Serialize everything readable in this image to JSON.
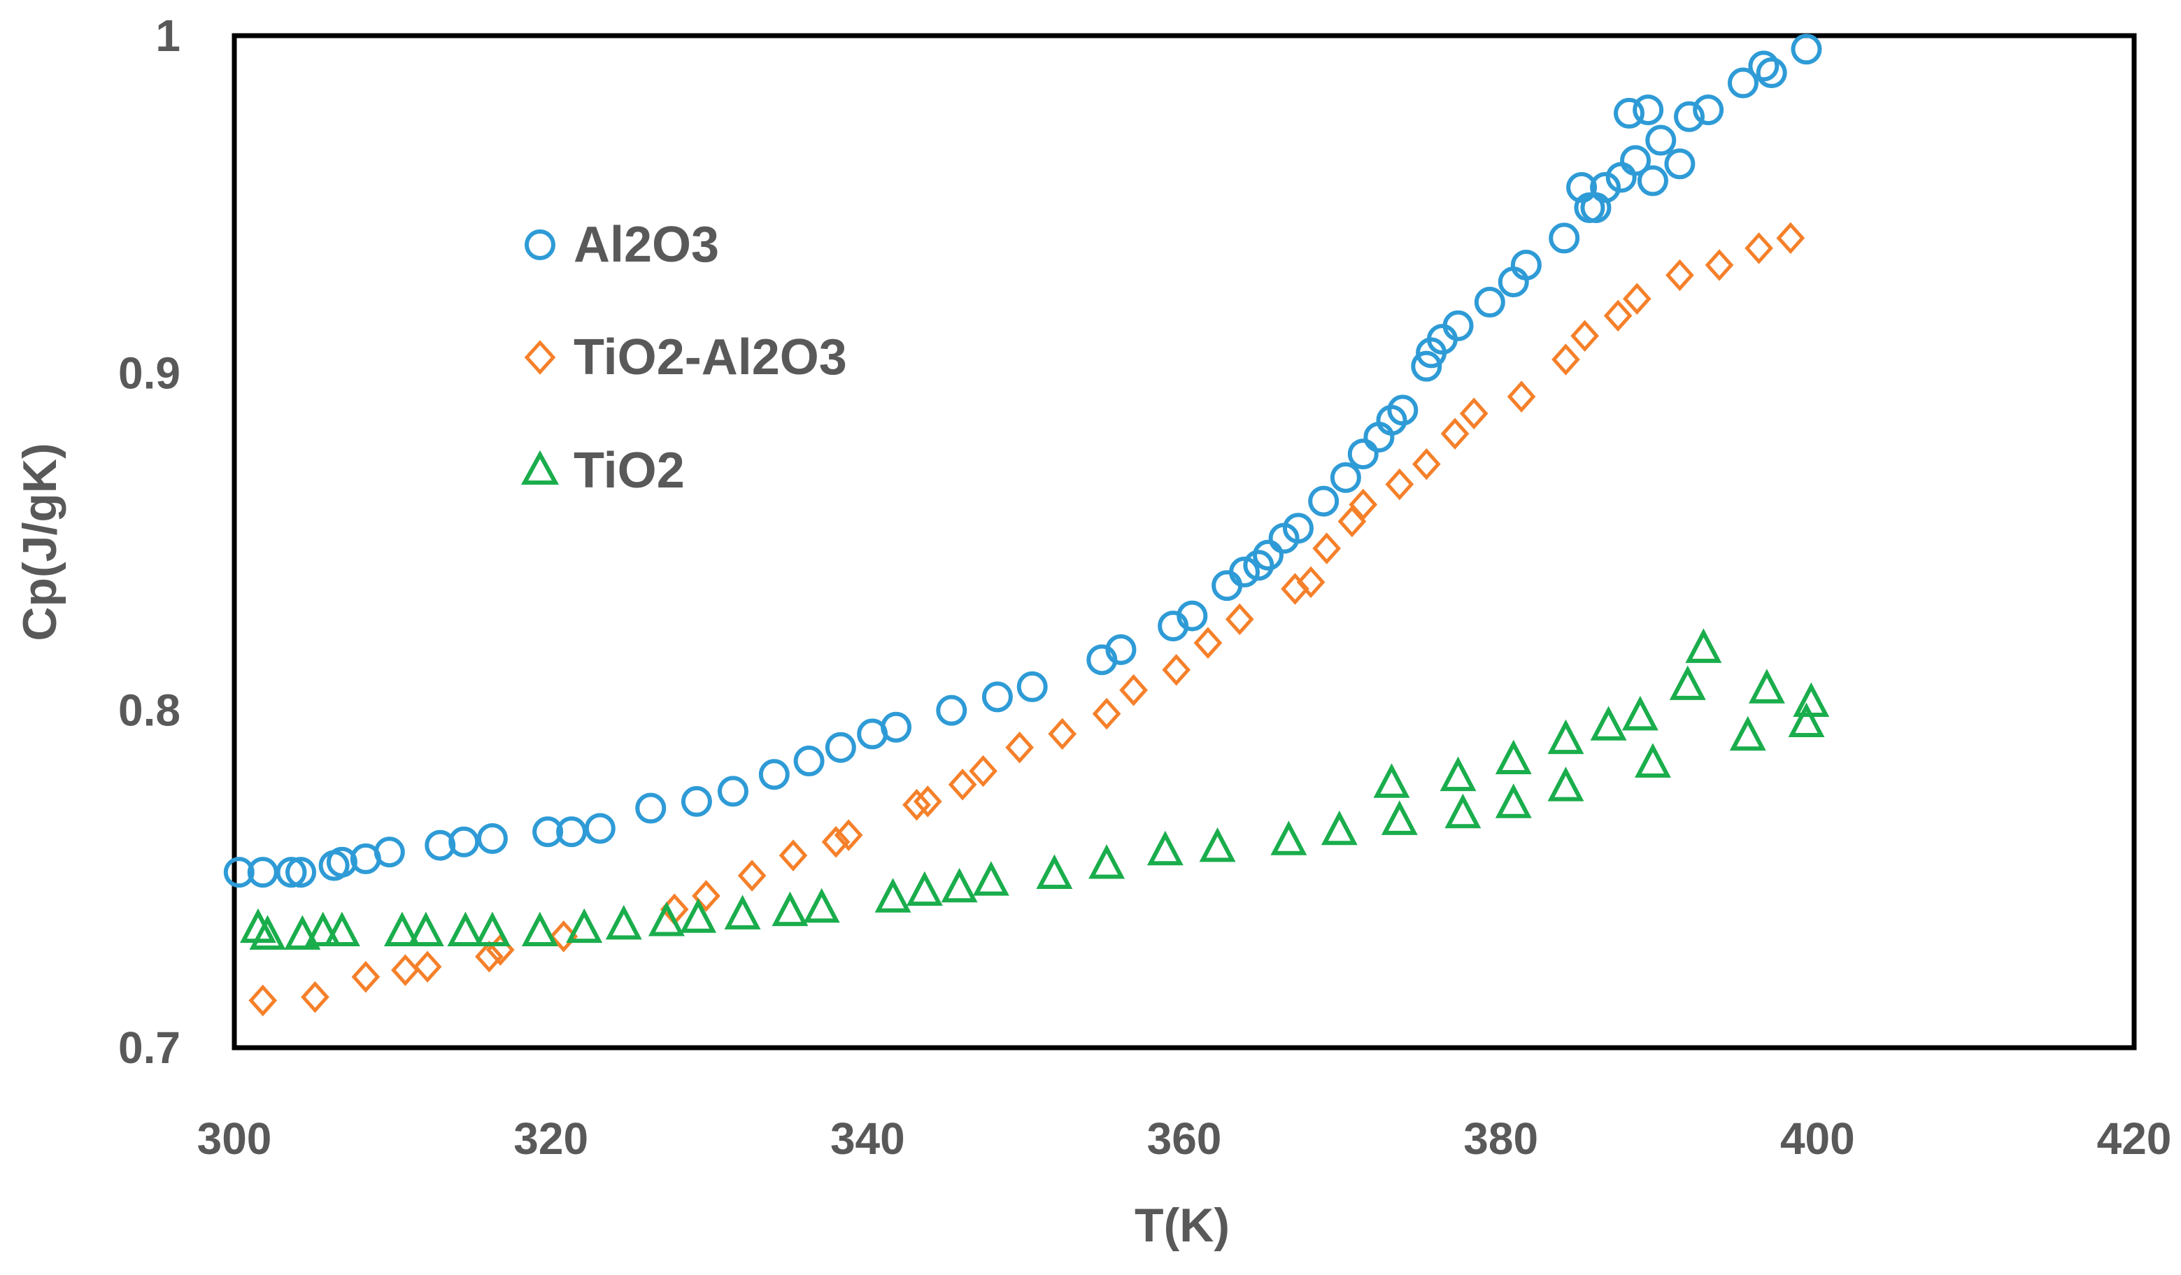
{
  "chart_data": {
    "type": "scatter",
    "title": "",
    "xlabel": "T(K)",
    "ylabel": "Cp(J/gK)",
    "xlim": [
      300,
      420
    ],
    "ylim": [
      0.7,
      1.0
    ],
    "x_ticks": [
      "300",
      "320",
      "340",
      "360",
      "380",
      "400",
      "420"
    ],
    "y_ticks": [
      "0.7",
      "0.8",
      "0.9",
      "1"
    ],
    "grid": false,
    "legend_position": "top-left",
    "series": [
      {
        "name": "Al2O3",
        "marker": "circle",
        "color": "#2e9bd6",
        "points": [
          [
            300.3,
            0.752
          ],
          [
            301.8,
            0.752
          ],
          [
            303.6,
            0.752
          ],
          [
            304.2,
            0.752
          ],
          [
            306.3,
            0.754
          ],
          [
            306.8,
            0.755
          ],
          [
            308.3,
            0.756
          ],
          [
            309.8,
            0.758
          ],
          [
            313.0,
            0.76
          ],
          [
            314.5,
            0.761
          ],
          [
            316.3,
            0.762
          ],
          [
            319.8,
            0.764
          ],
          [
            321.3,
            0.764
          ],
          [
            323.1,
            0.765
          ],
          [
            326.3,
            0.771
          ],
          [
            329.2,
            0.773
          ],
          [
            331.5,
            0.776
          ],
          [
            334.1,
            0.781
          ],
          [
            336.3,
            0.785
          ],
          [
            338.3,
            0.789
          ],
          [
            340.3,
            0.793
          ],
          [
            341.8,
            0.795
          ],
          [
            345.3,
            0.8
          ],
          [
            348.2,
            0.804
          ],
          [
            350.4,
            0.807
          ],
          [
            354.8,
            0.815
          ],
          [
            356.0,
            0.818
          ],
          [
            359.3,
            0.825
          ],
          [
            360.5,
            0.828
          ],
          [
            362.7,
            0.837
          ],
          [
            363.8,
            0.841
          ],
          [
            364.7,
            0.843
          ],
          [
            365.3,
            0.846
          ],
          [
            366.3,
            0.851
          ],
          [
            367.2,
            0.854
          ],
          [
            368.8,
            0.862
          ],
          [
            370.2,
            0.869
          ],
          [
            371.3,
            0.876
          ],
          [
            372.3,
            0.881
          ],
          [
            373.1,
            0.886
          ],
          [
            373.8,
            0.889
          ],
          [
            375.3,
            0.902
          ],
          [
            375.6,
            0.906
          ],
          [
            376.3,
            0.91
          ],
          [
            377.3,
            0.914
          ],
          [
            379.3,
            0.921
          ],
          [
            380.8,
            0.927
          ],
          [
            381.6,
            0.932
          ],
          [
            384.0,
            0.94
          ],
          [
            385.1,
            0.955
          ],
          [
            385.6,
            0.949
          ],
          [
            386.0,
            0.949
          ],
          [
            386.6,
            0.955
          ],
          [
            387.6,
            0.958
          ],
          [
            388.1,
            0.977
          ],
          [
            388.5,
            0.963
          ],
          [
            389.3,
            0.978
          ],
          [
            389.6,
            0.957
          ],
          [
            390.1,
            0.969
          ],
          [
            391.3,
            0.962
          ],
          [
            391.9,
            0.976
          ],
          [
            393.1,
            0.978
          ],
          [
            395.3,
            0.986
          ],
          [
            396.6,
            0.991
          ],
          [
            397.1,
            0.989
          ],
          [
            399.3,
            0.996
          ]
        ]
      },
      {
        "name": "TiO2-Al2O3",
        "marker": "diamond",
        "color": "#f5802a",
        "points": [
          [
            301.8,
            0.714
          ],
          [
            305.1,
            0.715
          ],
          [
            308.3,
            0.721
          ],
          [
            310.8,
            0.723
          ],
          [
            312.2,
            0.724
          ],
          [
            316.1,
            0.727
          ],
          [
            316.8,
            0.729
          ],
          [
            320.8,
            0.733
          ],
          [
            327.8,
            0.741
          ],
          [
            329.8,
            0.745
          ],
          [
            332.7,
            0.751
          ],
          [
            335.3,
            0.757
          ],
          [
            338.0,
            0.761
          ],
          [
            338.8,
            0.763
          ],
          [
            343.1,
            0.772
          ],
          [
            343.8,
            0.773
          ],
          [
            346.0,
            0.778
          ],
          [
            347.3,
            0.782
          ],
          [
            349.6,
            0.789
          ],
          [
            352.3,
            0.793
          ],
          [
            355.1,
            0.799
          ],
          [
            356.8,
            0.806
          ],
          [
            359.5,
            0.812
          ],
          [
            361.5,
            0.82
          ],
          [
            363.5,
            0.827
          ],
          [
            367.0,
            0.836
          ],
          [
            368.0,
            0.838
          ],
          [
            369.0,
            0.848
          ],
          [
            370.6,
            0.856
          ],
          [
            371.3,
            0.861
          ],
          [
            373.6,
            0.867
          ],
          [
            375.3,
            0.873
          ],
          [
            377.1,
            0.882
          ],
          [
            378.3,
            0.888
          ],
          [
            381.3,
            0.893
          ],
          [
            384.1,
            0.904
          ],
          [
            385.3,
            0.911
          ],
          [
            387.4,
            0.917
          ],
          [
            388.6,
            0.922
          ],
          [
            391.3,
            0.929
          ],
          [
            393.8,
            0.932
          ],
          [
            396.3,
            0.937
          ],
          [
            398.3,
            0.94
          ]
        ]
      },
      {
        "name": "TiO2",
        "marker": "triangle",
        "color": "#1aad4c",
        "points": [
          [
            301.5,
            0.735
          ],
          [
            302.1,
            0.733
          ],
          [
            304.3,
            0.733
          ],
          [
            305.6,
            0.734
          ],
          [
            306.8,
            0.734
          ],
          [
            310.6,
            0.734
          ],
          [
            312.1,
            0.734
          ],
          [
            314.6,
            0.734
          ],
          [
            316.3,
            0.734
          ],
          [
            319.3,
            0.734
          ],
          [
            322.1,
            0.735
          ],
          [
            324.6,
            0.736
          ],
          [
            327.3,
            0.737
          ],
          [
            329.3,
            0.738
          ],
          [
            332.1,
            0.739
          ],
          [
            335.1,
            0.74
          ],
          [
            337.1,
            0.741
          ],
          [
            341.6,
            0.744
          ],
          [
            343.6,
            0.746
          ],
          [
            345.8,
            0.747
          ],
          [
            347.8,
            0.749
          ],
          [
            351.8,
            0.751
          ],
          [
            355.1,
            0.754
          ],
          [
            358.8,
            0.758
          ],
          [
            362.1,
            0.759
          ],
          [
            366.6,
            0.761
          ],
          [
            369.8,
            0.764
          ],
          [
            373.1,
            0.778
          ],
          [
            373.6,
            0.767
          ],
          [
            377.3,
            0.78
          ],
          [
            377.6,
            0.769
          ],
          [
            380.8,
            0.785
          ],
          [
            380.8,
            0.772
          ],
          [
            384.1,
            0.791
          ],
          [
            384.1,
            0.777
          ],
          [
            386.8,
            0.795
          ],
          [
            388.8,
            0.798
          ],
          [
            389.6,
            0.784
          ],
          [
            391.8,
            0.807
          ],
          [
            392.8,
            0.818
          ],
          [
            395.6,
            0.792
          ],
          [
            396.8,
            0.806
          ],
          [
            399.3,
            0.796
          ],
          [
            399.6,
            0.802
          ]
        ]
      }
    ]
  }
}
